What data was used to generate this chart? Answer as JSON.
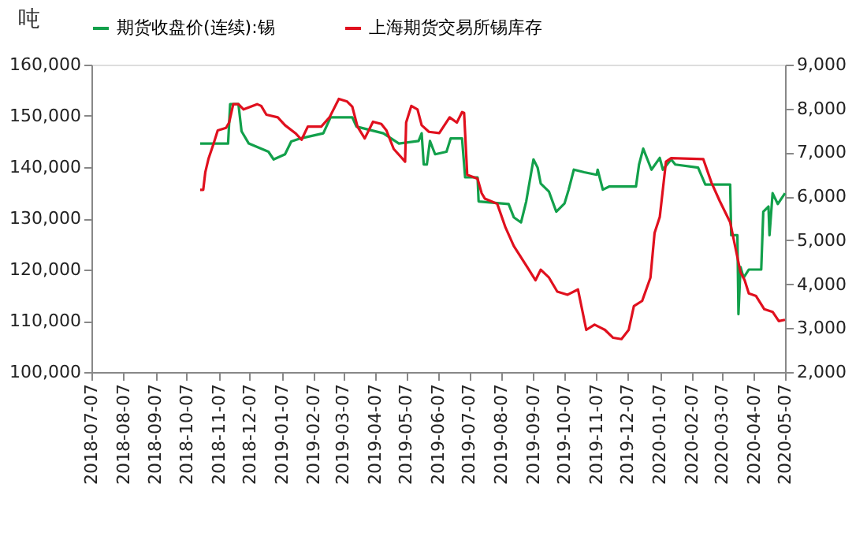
{
  "chart_data": {
    "type": "line",
    "ylabel": "吨",
    "legend": "top",
    "grid": false,
    "marker": "none",
    "line_style": "solid",
    "xlim": [
      "2018-07-07",
      "2020-05-07"
    ],
    "xticks": [
      "2018-07-07",
      "2018-08-07",
      "2018-09-07",
      "2018-10-07",
      "2018-11-07",
      "2018-12-07",
      "2019-01-07",
      "2019-02-07",
      "2019-03-07",
      "2019-04-07",
      "2019-05-07",
      "2019-06-07",
      "2019-07-07",
      "2019-08-07",
      "2019-09-07",
      "2019-10-07",
      "2019-11-07",
      "2019-12-07",
      "2020-01-07",
      "2020-02-07",
      "2020-03-07",
      "2020-04-07",
      "2020-05-07"
    ],
    "ylim": [
      100000,
      160000
    ],
    "yticks": [
      {
        "value": 100000,
        "label": "100,000"
      },
      {
        "value": 110000,
        "label": "110,000"
      },
      {
        "value": 120000,
        "label": "120,000"
      },
      {
        "value": 130000,
        "label": "130,000"
      },
      {
        "value": 140000,
        "label": "140,000"
      },
      {
        "value": 150000,
        "label": "150,000"
      },
      {
        "value": 160000,
        "label": "160,000"
      }
    ],
    "y2lim": [
      2000,
      9000
    ],
    "y2ticks": [
      {
        "value": 2000,
        "label": "2,000"
      },
      {
        "value": 3000,
        "label": "3,000"
      },
      {
        "value": 4000,
        "label": "4,000"
      },
      {
        "value": 5000,
        "label": "5,000"
      },
      {
        "value": 6000,
        "label": "6,000"
      },
      {
        "value": 7000,
        "label": "7,000"
      },
      {
        "value": 8000,
        "label": "8,000"
      },
      {
        "value": 9000,
        "label": "9,000"
      }
    ],
    "series": [
      {
        "name": "期货收盘价(连续):锡",
        "color": "#12a04b",
        "axis": "y",
        "x": [
          "2018-10-20",
          "2018-11-16",
          "2018-11-18",
          "2018-11-26",
          "2018-11-29",
          "2018-12-06",
          "2018-12-25",
          "2018-12-30",
          "2019-01-10",
          "2019-01-16",
          "2019-01-25",
          "2019-02-16",
          "2019-02-23",
          "2019-03-16",
          "2019-03-20",
          "2019-04-15",
          "2019-04-30",
          "2019-05-19",
          "2019-05-22",
          "2019-05-24",
          "2019-05-27",
          "2019-05-30",
          "2019-06-04",
          "2019-06-15",
          "2019-06-19",
          "2019-06-30",
          "2019-07-03",
          "2019-07-15",
          "2019-07-16",
          "2019-08-14",
          "2019-08-19",
          "2019-08-26",
          "2019-08-31",
          "2019-09-07",
          "2019-09-11",
          "2019-09-14",
          "2019-09-22",
          "2019-09-29",
          "2019-10-07",
          "2019-10-11",
          "2019-10-16",
          "2019-10-26",
          "2019-11-07",
          "2019-11-08",
          "2019-11-13",
          "2019-11-19",
          "2019-12-15",
          "2019-12-18",
          "2019-12-22",
          "2019-12-30",
          "2020-01-07",
          "2020-01-10",
          "2020-01-18",
          "2020-01-22",
          "2020-02-13",
          "2020-02-20",
          "2020-03-15",
          "2020-03-16",
          "2020-03-22",
          "2020-03-23",
          "2020-03-25",
          "2020-03-28",
          "2020-04-02",
          "2020-04-14",
          "2020-04-16",
          "2020-04-21",
          "2020-04-22",
          "2020-04-25",
          "2020-04-30",
          "2020-05-07"
        ],
        "values": [
          144600,
          144600,
          152300,
          152300,
          147000,
          144600,
          143000,
          141500,
          142500,
          145000,
          145600,
          146600,
          149700,
          149700,
          147900,
          146600,
          144600,
          145100,
          146600,
          140500,
          140500,
          145100,
          142500,
          143000,
          145600,
          145600,
          138000,
          138000,
          133300,
          132800,
          130200,
          129200,
          133300,
          141500,
          139900,
          136800,
          135200,
          131300,
          132900,
          135600,
          139500,
          139000,
          138500,
          139500,
          135600,
          136200,
          136200,
          140500,
          143600,
          139500,
          141800,
          139500,
          141500,
          140500,
          139900,
          136600,
          136600,
          126700,
          126700,
          111300,
          120500,
          118400,
          120000,
          120000,
          131300,
          132300,
          126700,
          134900,
          132800,
          134900
        ]
      },
      {
        "name": "上海期货交易所锡库存",
        "color": "#e0101e",
        "axis": "y2",
        "x": [
          "2018-10-20",
          "2018-10-23",
          "2018-10-25",
          "2018-10-28",
          "2018-11-02",
          "2018-11-06",
          "2018-11-14",
          "2018-11-17",
          "2018-11-21",
          "2018-11-26",
          "2018-12-01",
          "2018-12-14",
          "2018-12-18",
          "2018-12-23",
          "2019-01-03",
          "2019-01-10",
          "2019-01-20",
          "2019-01-26",
          "2019-02-01",
          "2019-02-14",
          "2019-02-22",
          "2019-03-03",
          "2019-03-11",
          "2019-03-16",
          "2019-03-21",
          "2019-03-28",
          "2019-04-05",
          "2019-04-13",
          "2019-04-18",
          "2019-04-25",
          "2019-05-06",
          "2019-05-07",
          "2019-05-12",
          "2019-05-18",
          "2019-05-22",
          "2019-05-29",
          "2019-06-08",
          "2019-06-18",
          "2019-06-25",
          "2019-06-30",
          "2019-07-02",
          "2019-07-05",
          "2019-07-15",
          "2019-07-19",
          "2019-07-22",
          "2019-08-03",
          "2019-08-11",
          "2019-08-19",
          "2019-09-01",
          "2019-09-09",
          "2019-09-14",
          "2019-09-22",
          "2019-09-30",
          "2019-10-10",
          "2019-10-20",
          "2019-10-28",
          "2019-11-05",
          "2019-11-15",
          "2019-11-23",
          "2019-12-01",
          "2019-12-08",
          "2019-12-13",
          "2019-12-21",
          "2019-12-29",
          "2020-01-02",
          "2020-01-07",
          "2020-01-13",
          "2020-01-18",
          "2020-02-18",
          "2020-02-26",
          "2020-03-05",
          "2020-03-15",
          "2020-03-25",
          "2020-03-29",
          "2020-04-02",
          "2020-04-09",
          "2020-04-17",
          "2020-04-25",
          "2020-05-01",
          "2020-05-07"
        ],
        "values": [
          6150,
          6150,
          6550,
          6850,
          7200,
          7500,
          7560,
          7680,
          8100,
          8100,
          7980,
          8100,
          8060,
          7860,
          7800,
          7620,
          7440,
          7290,
          7590,
          7590,
          7800,
          8220,
          8160,
          8040,
          7590,
          7320,
          7700,
          7650,
          7500,
          7080,
          6790,
          7680,
          8060,
          7980,
          7620,
          7470,
          7440,
          7800,
          7680,
          7920,
          7900,
          6490,
          6400,
          6070,
          5950,
          5830,
          5290,
          4870,
          4390,
          4090,
          4330,
          4150,
          3830,
          3760,
          3880,
          2960,
          3080,
          2960,
          2780,
          2750,
          2960,
          3500,
          3620,
          4150,
          5170,
          5530,
          6790,
          6870,
          6850,
          6310,
          5890,
          5410,
          4270,
          4090,
          3790,
          3730,
          3430,
          3370,
          3160,
          3190
        ]
      }
    ]
  }
}
